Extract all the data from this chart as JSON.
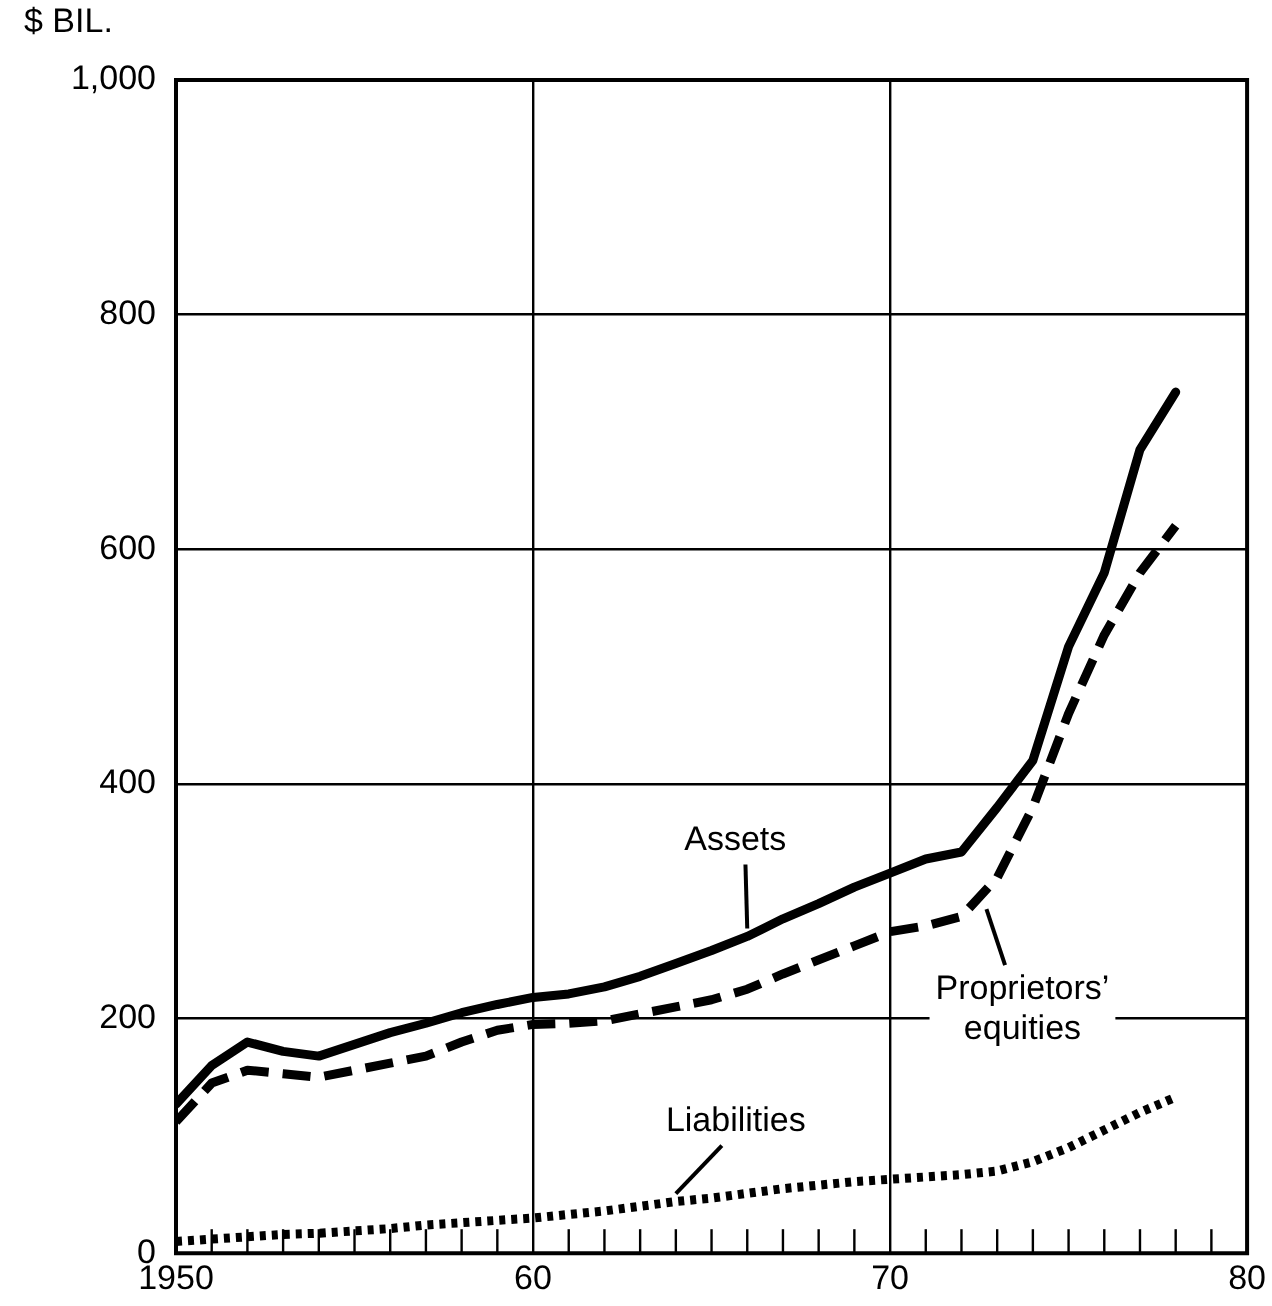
{
  "chart_data": {
    "type": "line",
    "ylabel": "$ BIL.",
    "x": [
      1950,
      1951,
      1952,
      1953,
      1954,
      1955,
      1956,
      1957,
      1958,
      1959,
      1960,
      1961,
      1962,
      1963,
      1964,
      1965,
      1966,
      1967,
      1968,
      1969,
      1970,
      1971,
      1972,
      1973,
      1974,
      1975,
      1976,
      1977,
      1978
    ],
    "series": [
      {
        "color": "#000000",
        "line_style": "solid",
        "values": [
          127,
          160,
          180,
          172,
          168,
          178,
          188,
          196,
          205,
          212,
          218,
          221,
          227,
          236,
          247,
          258,
          270,
          285,
          298,
          312,
          324,
          336,
          342,
          380,
          420,
          517,
          580,
          685,
          734
        ]
      },
      {
        "color": "#000000",
        "line_style": "dashed",
        "values": [
          112,
          145,
          156,
          153,
          150,
          156,
          162,
          168,
          180,
          190,
          195,
          196,
          198,
          204,
          210,
          216,
          225,
          238,
          250,
          262,
          274,
          279,
          287,
          320,
          380,
          460,
          527,
          580,
          620
        ]
      },
      {
        "color": "#000000",
        "line_style": "dotted",
        "values": [
          10,
          12,
          14,
          16,
          17,
          19,
          21,
          24,
          26,
          28,
          30,
          33,
          36,
          40,
          44,
          47,
          51,
          55,
          58,
          61,
          63,
          65,
          67,
          70,
          78,
          90,
          105,
          120,
          133
        ]
      }
    ],
    "xlim": [
      1950,
      1980
    ],
    "xticks": [
      {
        "value": 1950,
        "label": "1950"
      },
      {
        "value": 1951,
        "label": null
      },
      {
        "value": 1952,
        "label": null
      },
      {
        "value": 1953,
        "label": null
      },
      {
        "value": 1954,
        "label": null
      },
      {
        "value": 1955,
        "label": null
      },
      {
        "value": 1956,
        "label": null
      },
      {
        "value": 1957,
        "label": null
      },
      {
        "value": 1958,
        "label": null
      },
      {
        "value": 1959,
        "label": null
      },
      {
        "value": 1960,
        "label": "60"
      },
      {
        "value": 1961,
        "label": null
      },
      {
        "value": 1962,
        "label": null
      },
      {
        "value": 1963,
        "label": null
      },
      {
        "value": 1964,
        "label": null
      },
      {
        "value": 1965,
        "label": null
      },
      {
        "value": 1966,
        "label": null
      },
      {
        "value": 1967,
        "label": null
      },
      {
        "value": 1968,
        "label": null
      },
      {
        "value": 1969,
        "label": null
      },
      {
        "value": 1970,
        "label": "70"
      },
      {
        "value": 1971,
        "label": null
      },
      {
        "value": 1972,
        "label": null
      },
      {
        "value": 1973,
        "label": null
      },
      {
        "value": 1974,
        "label": null
      },
      {
        "value": 1975,
        "label": null
      },
      {
        "value": 1976,
        "label": null
      },
      {
        "value": 1977,
        "label": null
      },
      {
        "value": 1978,
        "label": null
      },
      {
        "value": 1979,
        "label": null
      },
      {
        "value": 1980,
        "label": "80"
      }
    ],
    "ylim": [
      0,
      1000
    ],
    "yticks": [
      0,
      200,
      400,
      600,
      800,
      {
        "value": 1000,
        "label": "1,000"
      }
    ],
    "annotations": [
      {
        "text": "Assets",
        "x": 1966,
        "y": 270
      },
      {
        "text": "Proprietors’\nequities",
        "x": 1972.7,
        "y": 300
      },
      {
        "text": "Liabilities",
        "x": 1964,
        "y": 44
      }
    ],
    "grid": true,
    "legend": false,
    "marker": "none"
  }
}
